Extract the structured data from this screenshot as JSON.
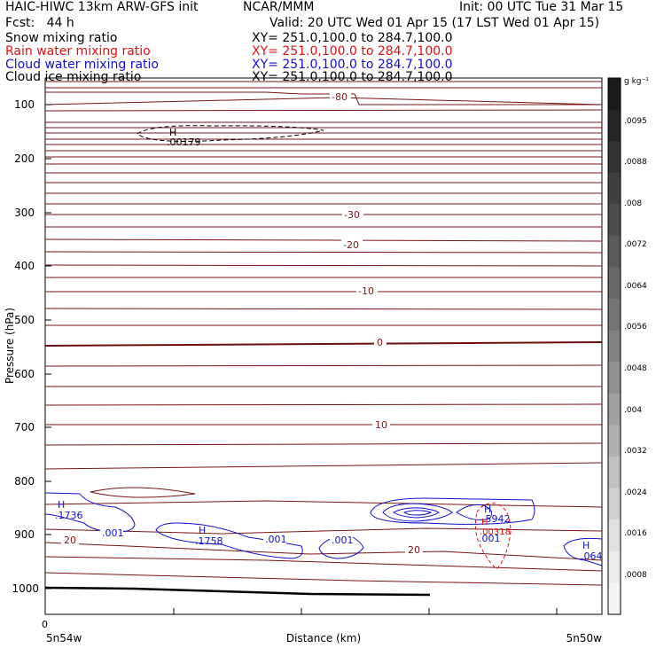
{
  "header": {
    "title_left": "HAIC-HIWC 13km ARW-GFS init",
    "org": "NCAR/MMM",
    "init": "Init: 00 UTC Tue 31 Mar 15",
    "fcst": "Fcst:   44 h",
    "valid": "Valid: 20 UTC Wed 01 Apr 15 (17 LST Wed 01 Apr 15)"
  },
  "fields": [
    {
      "name": "Snow mixing ratio",
      "xy": "XY= 251.0,100.0 to 284.7,100.0",
      "color": "#000000"
    },
    {
      "name": "Rain water mixing ratio",
      "xy": "XY= 251.0,100.0 to 284.7,100.0",
      "color": "#e01010"
    },
    {
      "name": "Cloud water mixing ratio",
      "xy": "XY= 251.0,100.0 to 284.7,100.0",
      "color": "#1010d0"
    },
    {
      "name": "Cloud ice mixing ratio",
      "xy": "XY= 251.0,100.0 to 284.7,100.0",
      "color": "#000000"
    }
  ],
  "axes": {
    "ylabel": "Pressure (hPa)",
    "xlabel": "Distance (km)",
    "y_ticks": [
      "100",
      "200",
      "300",
      "400",
      "500",
      "600",
      "700",
      "800",
      "900",
      "1000"
    ],
    "x_tick0": "0",
    "x_left": "5n54w",
    "x_right": "5n50w"
  },
  "contours": {
    "temp_labels": [
      "-80",
      "-30",
      "-20",
      "-10",
      "0",
      "10",
      "20",
      "20"
    ],
    "snow": {
      "H": "H",
      "value": ".00179"
    },
    "cloud_water": [
      {
        "H": "H",
        "value": ".1736"
      },
      {
        "H": "H",
        "value": ".1758"
      },
      {
        "H": "H",
        "value": ".5942"
      },
      {
        "H": "H",
        "value": ".064"
      }
    ],
    "cloud_water_001": [
      ".001",
      ".001",
      ".001",
      ".001"
    ],
    "rain": {
      "H": "H",
      "value": ".00318"
    }
  },
  "colorbar": {
    "unit": "g kg⁻¹",
    "labels": [
      ".0095",
      ".0088",
      ".008",
      ".0072",
      ".0064",
      ".0056",
      ".0048",
      ".004",
      ".0032",
      ".0024",
      ".0016",
      ".0008"
    ],
    "colors": [
      "#1a1a1a",
      "#262626",
      "#333333",
      "#404040",
      "#4d4d4d",
      "#5a5a5a",
      "#676767",
      "#747474",
      "#828282",
      "#909090",
      "#a0a0a0",
      "#b0b0b0",
      "#c0c0c0",
      "#d0d0d0",
      "#e0e0e0",
      "#ececec",
      "#f5f5f5"
    ]
  }
}
